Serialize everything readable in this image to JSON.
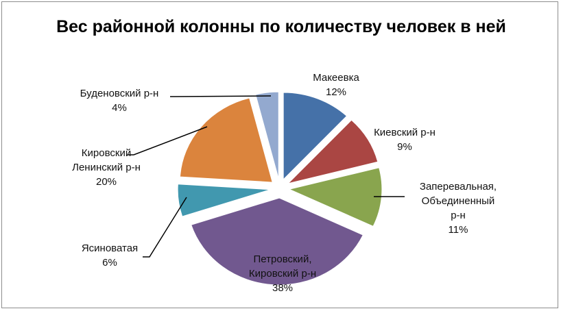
{
  "chart_data": {
    "type": "pie",
    "exploded": true,
    "title": "Вес районной колонны по количеству человек в ней",
    "slices": [
      {
        "lines": [
          "Макеевка"
        ],
        "percent_label": "12%",
        "value": 12,
        "color": "#4571a8"
      },
      {
        "lines": [
          "Киевский р-н"
        ],
        "percent_label": "9%",
        "value": 9,
        "color": "#aa4643"
      },
      {
        "lines": [
          "Заперевальная,",
          "Объединенный",
          "р-н"
        ],
        "percent_label": "11%",
        "value": 11,
        "color": "#89a54e"
      },
      {
        "lines": [
          "Петровский,",
          "Кировский р-н"
        ],
        "percent_label": "38%",
        "value": 38,
        "color": "#71588f"
      },
      {
        "lines": [
          "Ясиноватая"
        ],
        "percent_label": "6%",
        "value": 6,
        "color": "#4198af"
      },
      {
        "lines": [
          "Кировский",
          "Ленинский р-н"
        ],
        "percent_label": "20%",
        "value": 20,
        "color": "#db843d"
      },
      {
        "lines": [
          "Буденовский р-н"
        ],
        "percent_label": "4%",
        "value": 4,
        "color": "#93a9cf"
      }
    ]
  }
}
